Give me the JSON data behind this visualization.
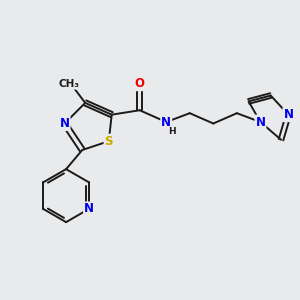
{
  "bg_color": "#e8eaec",
  "bond_color": "#1a1a1a",
  "atom_colors": {
    "N": "#0000ee",
    "O": "#ee0000",
    "S": "#ccaa00",
    "C": "#1a1a1a"
  },
  "font_size": 8.5,
  "bond_width": 1.4,
  "figsize": [
    3.0,
    3.0
  ],
  "dpi": 100,
  "xlim": [
    0,
    10
  ],
  "ylim": [
    0,
    10
  ]
}
